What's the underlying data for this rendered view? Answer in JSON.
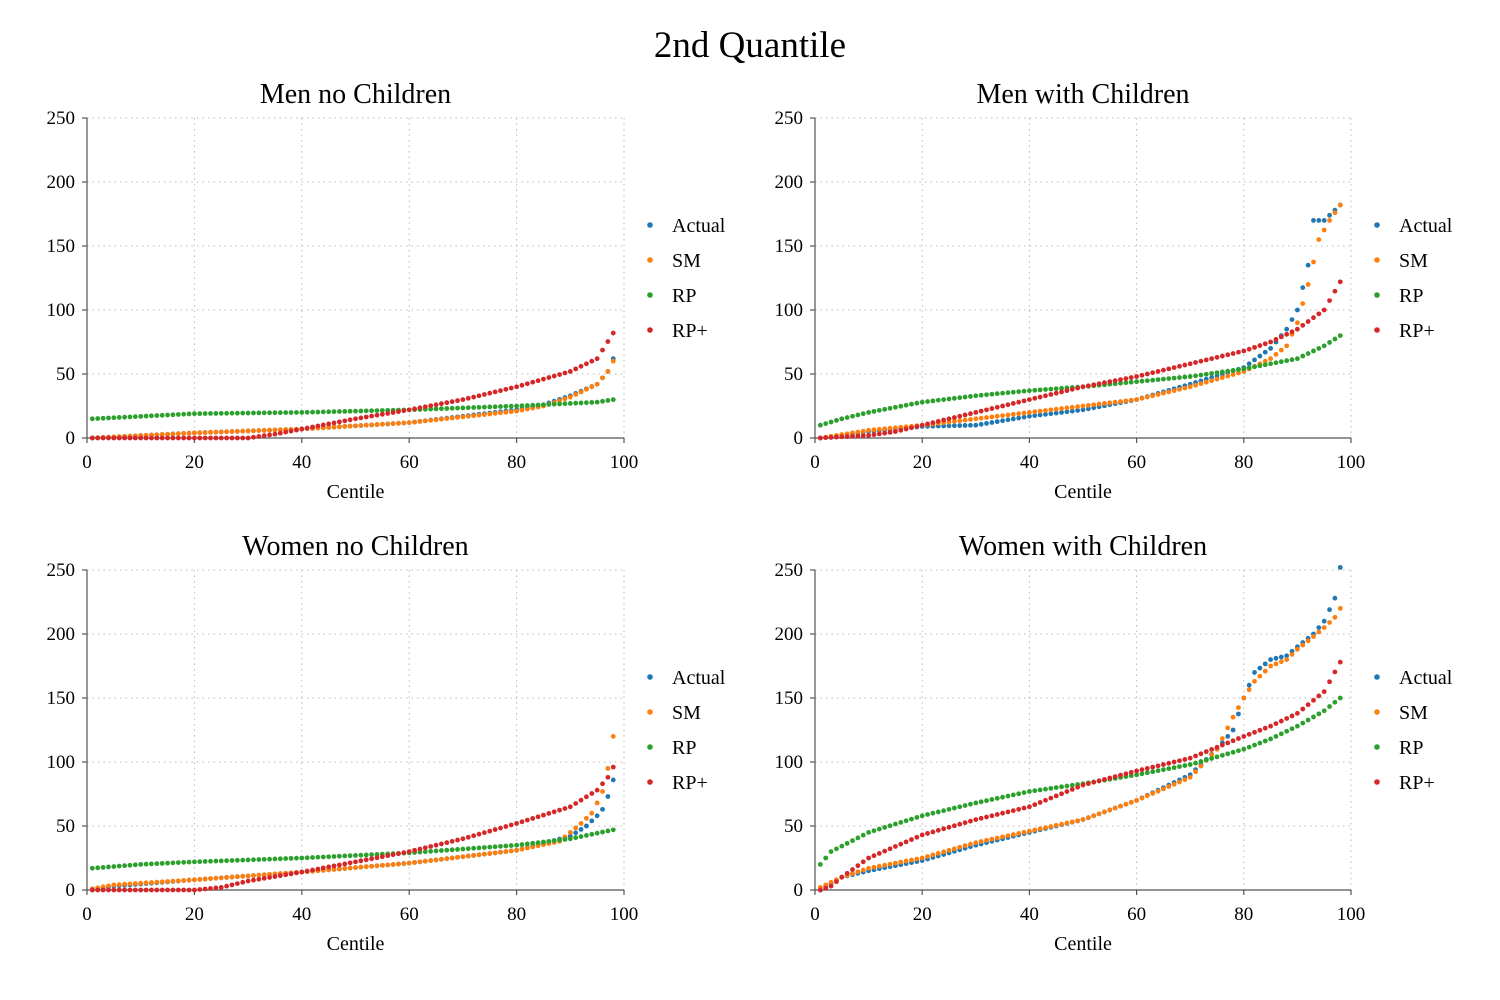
{
  "figure_title": "2nd Quantile",
  "colors": {
    "Actual": "#1f77b4",
    "SM": "#ff7f0e",
    "RP": "#2ca02c",
    "RP+": "#d62728"
  },
  "chart_data": [
    {
      "type": "scatter",
      "title": "Men no Children",
      "xlabel": "Centile",
      "ylabel": "",
      "xlim": [
        0,
        100
      ],
      "ylim": [
        0,
        250
      ],
      "xticks": [
        0,
        20,
        40,
        60,
        80,
        100
      ],
      "yticks": [
        0,
        50,
        100,
        150,
        200,
        250
      ],
      "grid": true,
      "legend": "right",
      "x": [
        1,
        98
      ],
      "series": [
        {
          "name": "Actual",
          "knots": [
            [
              1,
              0
            ],
            [
              20,
              4
            ],
            [
              40,
              7
            ],
            [
              60,
              12
            ],
            [
              80,
              22
            ],
            [
              85,
              26
            ],
            [
              90,
              33
            ],
            [
              95,
              42
            ],
            [
              97,
              52
            ],
            [
              98,
              62
            ]
          ]
        },
        {
          "name": "SM",
          "knots": [
            [
              1,
              0
            ],
            [
              20,
              4
            ],
            [
              40,
              7
            ],
            [
              60,
              12
            ],
            [
              80,
              21
            ],
            [
              85,
              25
            ],
            [
              90,
              32
            ],
            [
              95,
              42
            ],
            [
              97,
              52
            ],
            [
              98,
              60
            ]
          ]
        },
        {
          "name": "RP",
          "knots": [
            [
              1,
              15
            ],
            [
              20,
              19
            ],
            [
              40,
              20
            ],
            [
              60,
              22
            ],
            [
              80,
              25
            ],
            [
              95,
              28
            ],
            [
              98,
              30
            ]
          ]
        },
        {
          "name": "RP+",
          "knots": [
            [
              1,
              0
            ],
            [
              30,
              0
            ],
            [
              35,
              3
            ],
            [
              40,
              7
            ],
            [
              50,
              15
            ],
            [
              60,
              22
            ],
            [
              70,
              30
            ],
            [
              80,
              40
            ],
            [
              90,
              52
            ],
            [
              95,
              62
            ],
            [
              98,
              82
            ]
          ]
        }
      ]
    },
    {
      "type": "scatter",
      "title": "Men with Children",
      "xlabel": "Centile",
      "ylabel": "",
      "xlim": [
        0,
        100
      ],
      "ylim": [
        0,
        250
      ],
      "xticks": [
        0,
        20,
        40,
        60,
        80,
        100
      ],
      "yticks": [
        0,
        50,
        100,
        150,
        200,
        250
      ],
      "grid": true,
      "legend": "right",
      "x": [
        1,
        98
      ],
      "series": [
        {
          "name": "Actual",
          "knots": [
            [
              1,
              0
            ],
            [
              10,
              5
            ],
            [
              20,
              9
            ],
            [
              30,
              10
            ],
            [
              40,
              17
            ],
            [
              50,
              22
            ],
            [
              60,
              30
            ],
            [
              70,
              42
            ],
            [
              80,
              55
            ],
            [
              85,
              70
            ],
            [
              88,
              85
            ],
            [
              90,
              100
            ],
            [
              92,
              135
            ],
            [
              93,
              170
            ],
            [
              95,
              170
            ],
            [
              97,
              178
            ],
            [
              98,
              182
            ]
          ]
        },
        {
          "name": "SM",
          "knots": [
            [
              1,
              0
            ],
            [
              10,
              6
            ],
            [
              20,
              10
            ],
            [
              30,
              15
            ],
            [
              40,
              20
            ],
            [
              50,
              25
            ],
            [
              60,
              30
            ],
            [
              70,
              40
            ],
            [
              80,
              52
            ],
            [
              85,
              62
            ],
            [
              88,
              72
            ],
            [
              90,
              90
            ],
            [
              92,
              120
            ],
            [
              94,
              155
            ],
            [
              96,
              170
            ],
            [
              98,
              182
            ]
          ]
        },
        {
          "name": "RP",
          "knots": [
            [
              1,
              10
            ],
            [
              5,
              15
            ],
            [
              10,
              20
            ],
            [
              20,
              28
            ],
            [
              30,
              33
            ],
            [
              40,
              37
            ],
            [
              50,
              40
            ],
            [
              60,
              44
            ],
            [
              70,
              48
            ],
            [
              80,
              54
            ],
            [
              85,
              58
            ],
            [
              90,
              62
            ],
            [
              95,
              72
            ],
            [
              98,
              80
            ]
          ]
        },
        {
          "name": "RP+",
          "knots": [
            [
              1,
              0
            ],
            [
              10,
              2
            ],
            [
              15,
              5
            ],
            [
              20,
              10
            ],
            [
              30,
              20
            ],
            [
              40,
              30
            ],
            [
              50,
              40
            ],
            [
              60,
              48
            ],
            [
              70,
              58
            ],
            [
              80,
              68
            ],
            [
              85,
              75
            ],
            [
              90,
              85
            ],
            [
              95,
              100
            ],
            [
              98,
              122
            ]
          ]
        }
      ]
    },
    {
      "type": "scatter",
      "title": "Women no Children",
      "xlabel": "Centile",
      "ylabel": "",
      "xlim": [
        0,
        100
      ],
      "ylim": [
        0,
        250
      ],
      "xticks": [
        0,
        20,
        40,
        60,
        80,
        100
      ],
      "yticks": [
        0,
        50,
        100,
        150,
        200,
        250
      ],
      "grid": true,
      "legend": "right",
      "x": [
        1,
        98
      ],
      "series": [
        {
          "name": "Actual",
          "knots": [
            [
              1,
              0
            ],
            [
              5,
              3
            ],
            [
              20,
              8
            ],
            [
              40,
              14
            ],
            [
              60,
              21
            ],
            [
              80,
              31
            ],
            [
              90,
              42
            ],
            [
              93,
              50
            ],
            [
              95,
              58
            ],
            [
              96,
              63
            ],
            [
              97,
              73
            ],
            [
              98,
              86
            ]
          ]
        },
        {
          "name": "SM",
          "knots": [
            [
              1,
              1
            ],
            [
              5,
              4
            ],
            [
              20,
              8
            ],
            [
              40,
              14
            ],
            [
              60,
              21
            ],
            [
              80,
              31
            ],
            [
              88,
              38
            ],
            [
              92,
              52
            ],
            [
              94,
              60
            ],
            [
              95,
              68
            ],
            [
              96,
              77
            ],
            [
              97,
              95
            ],
            [
              98,
              120
            ]
          ]
        },
        {
          "name": "RP",
          "knots": [
            [
              1,
              17
            ],
            [
              10,
              20
            ],
            [
              20,
              22
            ],
            [
              40,
              25
            ],
            [
              60,
              29
            ],
            [
              80,
              35
            ],
            [
              90,
              40
            ],
            [
              98,
              47
            ]
          ]
        },
        {
          "name": "RP+",
          "knots": [
            [
              1,
              0
            ],
            [
              20,
              0
            ],
            [
              25,
              2
            ],
            [
              30,
              7
            ],
            [
              40,
              14
            ],
            [
              50,
              22
            ],
            [
              60,
              30
            ],
            [
              70,
              40
            ],
            [
              80,
              52
            ],
            [
              90,
              65
            ],
            [
              95,
              78
            ],
            [
              97,
              88
            ],
            [
              98,
              96
            ]
          ]
        }
      ]
    },
    {
      "type": "scatter",
      "title": "Women with Children",
      "xlabel": "Centile",
      "ylabel": "",
      "xlim": [
        0,
        100
      ],
      "ylim": [
        0,
        250
      ],
      "xticks": [
        0,
        20,
        40,
        60,
        80,
        100
      ],
      "yticks": [
        0,
        50,
        100,
        150,
        200,
        250
      ],
      "grid": true,
      "legend": "right",
      "x": [
        1,
        98
      ],
      "series": [
        {
          "name": "Actual",
          "knots": [
            [
              1,
              0
            ],
            [
              5,
              10
            ],
            [
              10,
              15
            ],
            [
              20,
              23
            ],
            [
              30,
              35
            ],
            [
              40,
              45
            ],
            [
              50,
              55
            ],
            [
              60,
              70
            ],
            [
              70,
              90
            ],
            [
              75,
              110
            ],
            [
              78,
              125
            ],
            [
              80,
              150
            ],
            [
              82,
              170
            ],
            [
              85,
              180
            ],
            [
              88,
              183
            ],
            [
              90,
              190
            ],
            [
              93,
              200
            ],
            [
              95,
              210
            ],
            [
              97,
              228
            ],
            [
              98,
              252
            ]
          ]
        },
        {
          "name": "SM",
          "knots": [
            [
              1,
              2
            ],
            [
              5,
              10
            ],
            [
              10,
              17
            ],
            [
              20,
              25
            ],
            [
              30,
              37
            ],
            [
              40,
              46
            ],
            [
              50,
              55
            ],
            [
              60,
              70
            ],
            [
              70,
              88
            ],
            [
              75,
              110
            ],
            [
              78,
              135
            ],
            [
              80,
              150
            ],
            [
              82,
              163
            ],
            [
              85,
              175
            ],
            [
              88,
              180
            ],
            [
              90,
              188
            ],
            [
              93,
              198
            ],
            [
              95,
              205
            ],
            [
              97,
              213
            ],
            [
              98,
              220
            ]
          ]
        },
        {
          "name": "RP",
          "knots": [
            [
              1,
              20
            ],
            [
              3,
              30
            ],
            [
              10,
              45
            ],
            [
              20,
              58
            ],
            [
              30,
              68
            ],
            [
              40,
              77
            ],
            [
              50,
              83
            ],
            [
              60,
              90
            ],
            [
              70,
              98
            ],
            [
              80,
              110
            ],
            [
              85,
              118
            ],
            [
              90,
              128
            ],
            [
              95,
              140
            ],
            [
              98,
              150
            ]
          ]
        },
        {
          "name": "RP+",
          "knots": [
            [
              1,
              0
            ],
            [
              3,
              3
            ],
            [
              5,
              10
            ],
            [
              10,
              25
            ],
            [
              20,
              43
            ],
            [
              30,
              55
            ],
            [
              40,
              65
            ],
            [
              50,
              82
            ],
            [
              60,
              93
            ],
            [
              70,
              103
            ],
            [
              80,
              120
            ],
            [
              85,
              128
            ],
            [
              90,
              138
            ],
            [
              95,
              155
            ],
            [
              98,
              178
            ]
          ]
        }
      ]
    }
  ]
}
